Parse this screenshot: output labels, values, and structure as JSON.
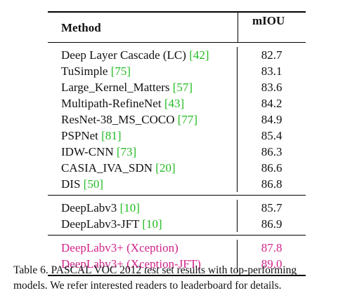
{
  "table": {
    "header": {
      "method": "Method",
      "score": "mIOU"
    },
    "groups": [
      [
        {
          "method": "Deep Layer Cascade (LC) ",
          "ref": "[42]",
          "score": "82.7"
        },
        {
          "method": "TuSimple ",
          "ref": "[75]",
          "score": "83.1"
        },
        {
          "method": "Large_Kernel_Matters ",
          "ref": "[57]",
          "score": "83.6"
        },
        {
          "method": "Multipath-RefineNet ",
          "ref": "[43]",
          "score": "84.2"
        },
        {
          "method": "ResNet-38_MS_COCO ",
          "ref": "[77]",
          "score": "84.9"
        },
        {
          "method": "PSPNet ",
          "ref": "[81]",
          "score": "85.4"
        },
        {
          "method": "IDW-CNN ",
          "ref": "[73]",
          "score": "86.3"
        },
        {
          "method": "CASIA_IVA_SDN ",
          "ref": "[20]",
          "score": "86.6"
        },
        {
          "method": "DIS ",
          "ref": "[50]",
          "score": "86.8"
        }
      ],
      [
        {
          "method": "DeepLabv3 ",
          "ref": "[10]",
          "score": "85.7"
        },
        {
          "method": "DeepLabv3-JFT ",
          "ref": "[10]",
          "score": "86.9"
        }
      ],
      [
        {
          "method": "DeepLabv3+ (Xception)",
          "ref": "",
          "score": "87.8",
          "highlight": true
        },
        {
          "method": "DeepLabv3+ (Xception-JFT)",
          "ref": "",
          "score": "89.0",
          "highlight": true
        }
      ]
    ]
  },
  "caption": {
    "prefix": "Table 6. PASCAL VOC 2012 ",
    "emph": "test",
    "suffix": " set results with top-performing models. We refer interested readers to leaderboard for details."
  },
  "colors": {
    "ref": "#22bb22",
    "highlight": "#d2238a"
  }
}
